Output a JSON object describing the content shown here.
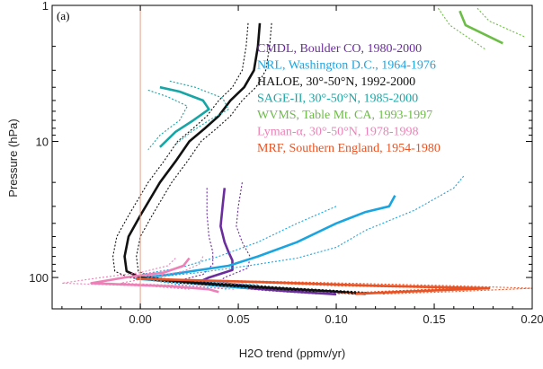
{
  "chart_data": {
    "type": "line",
    "panel_label": "(a)",
    "xlabel": "H2O trend (ppmv/yr)",
    "ylabel": "Pressure (hPa)",
    "xlim": [
      -0.045,
      0.2
    ],
    "ylim": [
      1,
      170
    ],
    "y_scale": "log",
    "y_reversed": true,
    "x_ticks": [
      0.0,
      0.05,
      0.1,
      0.15,
      0.2
    ],
    "x_tick_labels": [
      "0.00",
      "0.05",
      "0.10",
      "0.15",
      "0.20"
    ],
    "y_ticks": [
      1,
      10,
      100
    ],
    "y_tick_labels": [
      "1",
      "10",
      "100"
    ],
    "zero_line": true,
    "grid": false,
    "legend_position": "top-right",
    "series": [
      {
        "name": "CMDL, Boulder CO, 1980-2000",
        "color": "#6b2d9e",
        "mean": [
          [
            0.043,
            22
          ],
          [
            0.042,
            30
          ],
          [
            0.041,
            42
          ],
          [
            0.043,
            55
          ],
          [
            0.045,
            65
          ],
          [
            0.047,
            75
          ],
          [
            0.047,
            88
          ],
          [
            0.035,
            100
          ],
          [
            0.03,
            108
          ],
          [
            0.05,
            118
          ],
          [
            0.075,
            126
          ],
          [
            0.1,
            133
          ]
        ],
        "lower": [
          [
            0.034,
            22
          ],
          [
            0.034,
            34
          ],
          [
            0.035,
            50
          ],
          [
            0.037,
            65
          ],
          [
            0.037,
            80
          ],
          [
            0.032,
            95
          ],
          [
            0.02,
            105
          ],
          [
            0.04,
            116
          ],
          [
            0.065,
            125
          ],
          [
            0.09,
            132
          ]
        ],
        "upper": [
          [
            0.052,
            20
          ],
          [
            0.05,
            30
          ],
          [
            0.049,
            42
          ],
          [
            0.052,
            55
          ],
          [
            0.056,
            70
          ],
          [
            0.055,
            85
          ],
          [
            0.043,
            100
          ],
          [
            0.04,
            108
          ],
          [
            0.065,
            118
          ],
          [
            0.09,
            126
          ],
          [
            0.11,
            133
          ]
        ]
      },
      {
        "name": "NRL, Washington D.C., 1964-1976",
        "color": "#1aa5e0",
        "mean": [
          [
            0.13,
            25
          ],
          [
            0.127,
            30
          ],
          [
            0.115,
            33
          ],
          [
            0.1,
            40
          ],
          [
            0.08,
            55
          ],
          [
            0.06,
            70
          ],
          [
            0.045,
            82
          ],
          [
            0.015,
            95
          ],
          [
            -0.002,
            102
          ],
          [
            0.02,
            108
          ],
          [
            0.04,
            115
          ],
          [
            0.055,
            120
          ]
        ],
        "lower": [
          [
            0.1,
            30
          ],
          [
            0.08,
            40
          ],
          [
            0.06,
            55
          ],
          [
            0.04,
            70
          ],
          [
            0.02,
            85
          ],
          [
            0.0,
            95
          ],
          [
            0.005,
            105
          ],
          [
            0.025,
            115
          ],
          [
            0.045,
            122
          ]
        ],
        "upper": [
          [
            0.165,
            18
          ],
          [
            0.16,
            22
          ],
          [
            0.14,
            32
          ],
          [
            0.115,
            45
          ],
          [
            0.1,
            60
          ],
          [
            0.08,
            72
          ],
          [
            0.055,
            82
          ],
          [
            0.03,
            92
          ],
          [
            0.005,
            100
          ],
          [
            0.03,
            107
          ],
          [
            0.06,
            113
          ]
        ]
      },
      {
        "name": "HALOE, 30°-50°N, 1992-2000",
        "color": "#111111",
        "mean": [
          [
            0.061,
            1.35
          ],
          [
            0.06,
            2
          ],
          [
            0.058,
            3
          ],
          [
            0.053,
            4
          ],
          [
            0.046,
            5
          ],
          [
            0.04,
            6.5
          ],
          [
            0.033,
            8
          ],
          [
            0.025,
            10
          ],
          [
            0.018,
            14
          ],
          [
            0.01,
            20
          ],
          [
            0.0,
            35
          ],
          [
            -0.006,
            50
          ],
          [
            -0.008,
            70
          ],
          [
            -0.007,
            90
          ],
          [
            0.0,
            100
          ],
          [
            0.03,
            110
          ],
          [
            0.07,
            120
          ],
          [
            0.1,
            127
          ],
          [
            0.115,
            132
          ]
        ],
        "lower": [
          [
            0.055,
            1.35
          ],
          [
            0.054,
            2
          ],
          [
            0.052,
            3
          ],
          [
            0.047,
            4
          ],
          [
            0.04,
            5
          ],
          [
            0.034,
            6.5
          ],
          [
            0.027,
            8
          ],
          [
            0.019,
            10
          ],
          [
            0.012,
            14
          ],
          [
            0.004,
            20
          ],
          [
            -0.006,
            35
          ],
          [
            -0.012,
            50
          ],
          [
            -0.014,
            70
          ],
          [
            -0.013,
            90
          ],
          [
            -0.006,
            100
          ],
          [
            0.02,
            110
          ],
          [
            0.06,
            120
          ],
          [
            0.09,
            127
          ]
        ],
        "upper": [
          [
            0.067,
            1.35
          ],
          [
            0.066,
            2
          ],
          [
            0.064,
            3
          ],
          [
            0.059,
            4
          ],
          [
            0.052,
            5
          ],
          [
            0.046,
            6.5
          ],
          [
            0.039,
            8
          ],
          [
            0.031,
            10
          ],
          [
            0.024,
            14
          ],
          [
            0.016,
            20
          ],
          [
            0.006,
            35
          ],
          [
            0.0,
            50
          ],
          [
            -0.002,
            70
          ],
          [
            -0.001,
            90
          ],
          [
            0.006,
            100
          ],
          [
            0.04,
            110
          ],
          [
            0.08,
            120
          ],
          [
            0.11,
            127
          ],
          [
            0.125,
            132
          ]
        ]
      },
      {
        "name": "SAGE-II, 30°-50°N, 1985-2000",
        "color": "#17a5a5",
        "mean": [
          [
            0.01,
            4
          ],
          [
            0.02,
            4.3
          ],
          [
            0.032,
            5
          ],
          [
            0.035,
            5.8
          ],
          [
            0.027,
            7
          ],
          [
            0.018,
            8.5
          ],
          [
            0.01,
            11
          ]
        ],
        "lower": [
          [
            0.004,
            4.2
          ],
          [
            0.014,
            4.7
          ],
          [
            0.024,
            5.5
          ],
          [
            0.02,
            7
          ],
          [
            0.01,
            9
          ],
          [
            0.004,
            11.5
          ]
        ],
        "upper": [
          [
            0.015,
            3.6
          ],
          [
            0.028,
            4
          ],
          [
            0.042,
            4.8
          ],
          [
            0.045,
            5.8
          ],
          [
            0.035,
            7
          ],
          [
            0.026,
            8.5
          ],
          [
            0.018,
            10.5
          ]
        ]
      },
      {
        "name": "WVMS, Table Mt. CA, 1993-1997",
        "color": "#6cbd45",
        "mean": [
          [
            0.163,
            1.1
          ],
          [
            0.166,
            1.4
          ],
          [
            0.185,
            1.9
          ]
        ],
        "lower": [
          [
            0.152,
            1.05
          ],
          [
            0.158,
            1.4
          ],
          [
            0.176,
            2.1
          ]
        ],
        "upper": [
          [
            0.172,
            1.05
          ],
          [
            0.178,
            1.3
          ],
          [
            0.196,
            1.7
          ]
        ]
      },
      {
        "name": "Lyman-α, 30°-50°N, 1978-1998",
        "color": "#ee80b8",
        "mean": [
          [
            0.025,
            72
          ],
          [
            0.022,
            82
          ],
          [
            0.012,
            92
          ],
          [
            -0.008,
            100
          ],
          [
            -0.025,
            110
          ],
          [
            0.015,
            116
          ],
          [
            0.035,
            122
          ],
          [
            0.04,
            128
          ]
        ],
        "lower": [
          [
            0.018,
            72
          ],
          [
            0.014,
            82
          ],
          [
            0.0,
            92
          ],
          [
            -0.02,
            100
          ],
          [
            -0.04,
            110
          ],
          [
            0.005,
            116
          ],
          [
            0.025,
            122
          ]
        ],
        "upper": [
          [
            0.032,
            70
          ],
          [
            0.03,
            80
          ],
          [
            0.022,
            90
          ],
          [
            0.005,
            100
          ],
          [
            -0.01,
            110
          ],
          [
            0.03,
            116
          ],
          [
            0.048,
            122
          ]
        ]
      },
      {
        "name": "MRF, Southern England, 1954-1980",
        "color": "#e85325",
        "mean": [
          [
            -0.002,
            102
          ],
          [
            0.06,
            108
          ],
          [
            0.12,
            115
          ],
          [
            0.178,
            120
          ],
          [
            0.135,
            127
          ],
          [
            0.11,
            132
          ]
        ],
        "lower": [
          [
            -0.002,
            102
          ],
          [
            0.05,
            108
          ],
          [
            0.1,
            115
          ],
          [
            0.16,
            120
          ],
          [
            0.12,
            127
          ],
          [
            0.1,
            132
          ]
        ],
        "upper": [
          [
            -0.002,
            102
          ],
          [
            0.08,
            108
          ],
          [
            0.16,
            115
          ],
          [
            0.2,
            120
          ],
          [
            0.16,
            127
          ],
          [
            0.125,
            132
          ]
        ]
      }
    ]
  }
}
